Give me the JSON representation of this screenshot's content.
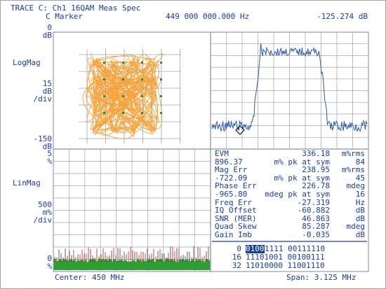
{
  "header": {
    "title": "TRACE C: Ch1 16QAM Meas Spec",
    "marker_label": "C Marker",
    "marker_freq": "449 000 000.000 Hz",
    "marker_value": "-125.274 dB"
  },
  "upper_axis": {
    "top_value": "0",
    "top_unit": "dB",
    "format": "LogMag",
    "scale_value": "15",
    "scale_unit": "dB",
    "scale_div": "/div",
    "bottom_value": "-150",
    "bottom_unit": "dB"
  },
  "lower_axis": {
    "top_value": "5",
    "top_unit": "%",
    "format": "LinMag",
    "scale_value": "500",
    "scale_unit": "m%",
    "scale_div": "/div",
    "bottom_value": "0",
    "bottom_unit": "%"
  },
  "footer": {
    "center": "Center: 450 MHz",
    "span": "Span: 3.125 MHz"
  },
  "metrics": [
    {
      "label": "EVM",
      "value": "336.18",
      "unit": "m%rms"
    },
    {
      "label": "896.37",
      "value": "m% pk at sym",
      "unit": "84"
    },
    {
      "label": "Mag Err",
      "value": "238.95",
      "unit": "m%rms"
    },
    {
      "label": "-722.09",
      "value": "m% pk at sym",
      "unit": "45"
    },
    {
      "label": "Phase Err",
      "value": "226.78",
      "unit": "mdeg"
    },
    {
      "label": "-965.80",
      "value": "mdeg pk at sym",
      "unit": "16"
    },
    {
      "label": "Freq Err",
      "value": "-27.319",
      "unit": "Hz"
    },
    {
      "label": "IQ Offset",
      "value": "-60.882",
      "unit": "dB"
    },
    {
      "label": "SNR (MER)",
      "value": "46.863",
      "unit": "dB"
    },
    {
      "label": "Quad Skew",
      "value": "85.287",
      "unit": "mdeg"
    },
    {
      "label": "Gain Imb",
      "value": "-0.035",
      "unit": "dB"
    }
  ],
  "symbol_rows": [
    {
      "index": "0",
      "first": "0100",
      "rest": "1111 00111110"
    },
    {
      "index": "16",
      "first": "",
      "rest": "11101001 00100111"
    },
    {
      "index": "32",
      "first": "",
      "rest": "11010000 11001110"
    }
  ],
  "colors": {
    "text": "#1b3d9a",
    "grid": "#9aa3b3",
    "constellation": "#f39a2a",
    "constellation_points": "#2e8b2e",
    "spectrum": "#2e5aa8",
    "error_fill": "#2f9d32",
    "error_spikes": "#b22222",
    "highlight_bg": "#1b3d9a"
  }
}
